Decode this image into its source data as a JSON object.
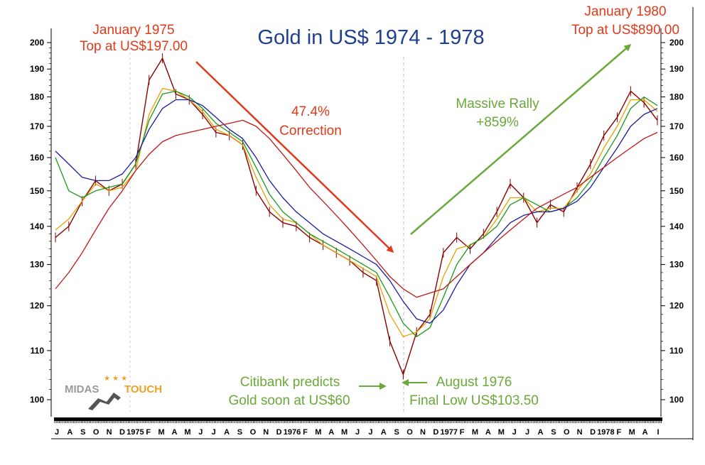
{
  "chart_data": {
    "type": "line",
    "title": "Gold in US$ 1974 - 1978",
    "ylim": [
      100,
      202
    ],
    "y_ticks": [
      100,
      110,
      120,
      130,
      140,
      150,
      160,
      170,
      180,
      190,
      200
    ],
    "y_scale": "log",
    "x_tick_labels": [
      "J",
      "A",
      "S",
      "O",
      "N",
      "D",
      "1975",
      "F",
      "M",
      "A",
      "M",
      "J",
      "J",
      "A",
      "S",
      "O",
      "N",
      "D",
      "1976",
      "F",
      "M",
      "A",
      "M",
      "J",
      "J",
      "A",
      "S",
      "O",
      "N",
      "D",
      "1977",
      "F",
      "M",
      "A",
      "M",
      "J",
      "J",
      "A",
      "S",
      "O",
      "N",
      "D",
      "1978",
      "F",
      "M",
      "A",
      "I"
    ],
    "grid": false,
    "series": [
      {
        "role": "price",
        "color": "#8b0000",
        "values": [
          137,
          140,
          147,
          153,
          150,
          152,
          158,
          186,
          194,
          181,
          179,
          174,
          168,
          167,
          164,
          150,
          144,
          141,
          140,
          137,
          135,
          133,
          131,
          128,
          126,
          112,
          105,
          114,
          118,
          133,
          137,
          134,
          138,
          144,
          152,
          148,
          141,
          146,
          144,
          151,
          158,
          167,
          173,
          182,
          178,
          172
        ]
      },
      {
        "role": "moving-average-short",
        "color": "#e8a000",
        "values": [
          139,
          142,
          147,
          152,
          150,
          151,
          156,
          174,
          183,
          182,
          179,
          175,
          169,
          167,
          164,
          154,
          146,
          142,
          141,
          138,
          135,
          133,
          131,
          129,
          127,
          118,
          113,
          114,
          117,
          127,
          134,
          135,
          137,
          142,
          148,
          148,
          144,
          145,
          145,
          150,
          155,
          163,
          170,
          179,
          179,
          175
        ]
      },
      {
        "role": "moving-average-medium",
        "color": "#1a9a1a",
        "values": [
          160,
          150,
          148,
          150,
          151,
          152,
          158,
          172,
          181,
          182,
          180,
          176,
          171,
          168,
          165,
          157,
          149,
          144,
          141,
          138,
          136,
          134,
          132,
          130,
          128,
          122,
          116,
          113,
          115,
          122,
          130,
          135,
          137,
          140,
          146,
          148,
          146,
          144,
          145,
          148,
          153,
          160,
          167,
          176,
          180,
          177
        ]
      },
      {
        "role": "moving-average-long",
        "color": "#1a1aa0",
        "values": [
          162,
          158,
          154,
          153,
          153,
          155,
          160,
          169,
          176,
          179,
          179,
          177,
          173,
          169,
          166,
          160,
          153,
          148,
          144,
          141,
          138,
          136,
          134,
          132,
          130,
          126,
          121,
          117,
          116,
          119,
          125,
          130,
          133,
          137,
          141,
          143,
          144,
          144,
          145,
          147,
          151,
          157,
          163,
          170,
          174,
          176
        ]
      },
      {
        "role": "moving-average-longest",
        "color": "#c01818",
        "values": [
          124,
          128,
          133,
          139,
          145,
          150,
          156,
          161,
          165,
          167,
          168,
          169,
          170,
          171,
          172,
          170,
          166,
          161,
          156,
          151,
          147,
          143,
          139,
          135,
          131,
          127,
          124,
          122,
          123,
          124,
          127,
          130,
          133,
          136,
          139,
          142,
          145,
          147,
          149,
          151,
          154,
          157,
          160,
          163,
          166,
          168
        ]
      }
    ]
  },
  "annotations": {
    "jan1975_line1": "January 1975",
    "jan1975_line2": "Top at US$197.00",
    "correction_line1": "47.4%",
    "correction_line2": "Correction",
    "rally_line1": "Massive Rally",
    "rally_line2": "+859%",
    "jan1980_line1": "January 1980",
    "jan1980_line2": "Top at US$890.00",
    "citibank_line1": "Citibank predicts",
    "citibank_line2": "Gold soon at US$60",
    "aug1976_line1": "August 1976",
    "aug1976_line2": "Final Low US$103.50"
  },
  "logo": {
    "word1": "MIDAS",
    "word2": "TOUCH",
    "word1_color": "#9a9a9a",
    "word2_color": "#f0a020"
  },
  "colors": {
    "red_text": "#e03a1a",
    "green_text": "#6aa83a",
    "title_blue": "#1f3f8f",
    "red_arrow": "#e03a1a",
    "green_arrow": "#6aa83a"
  }
}
